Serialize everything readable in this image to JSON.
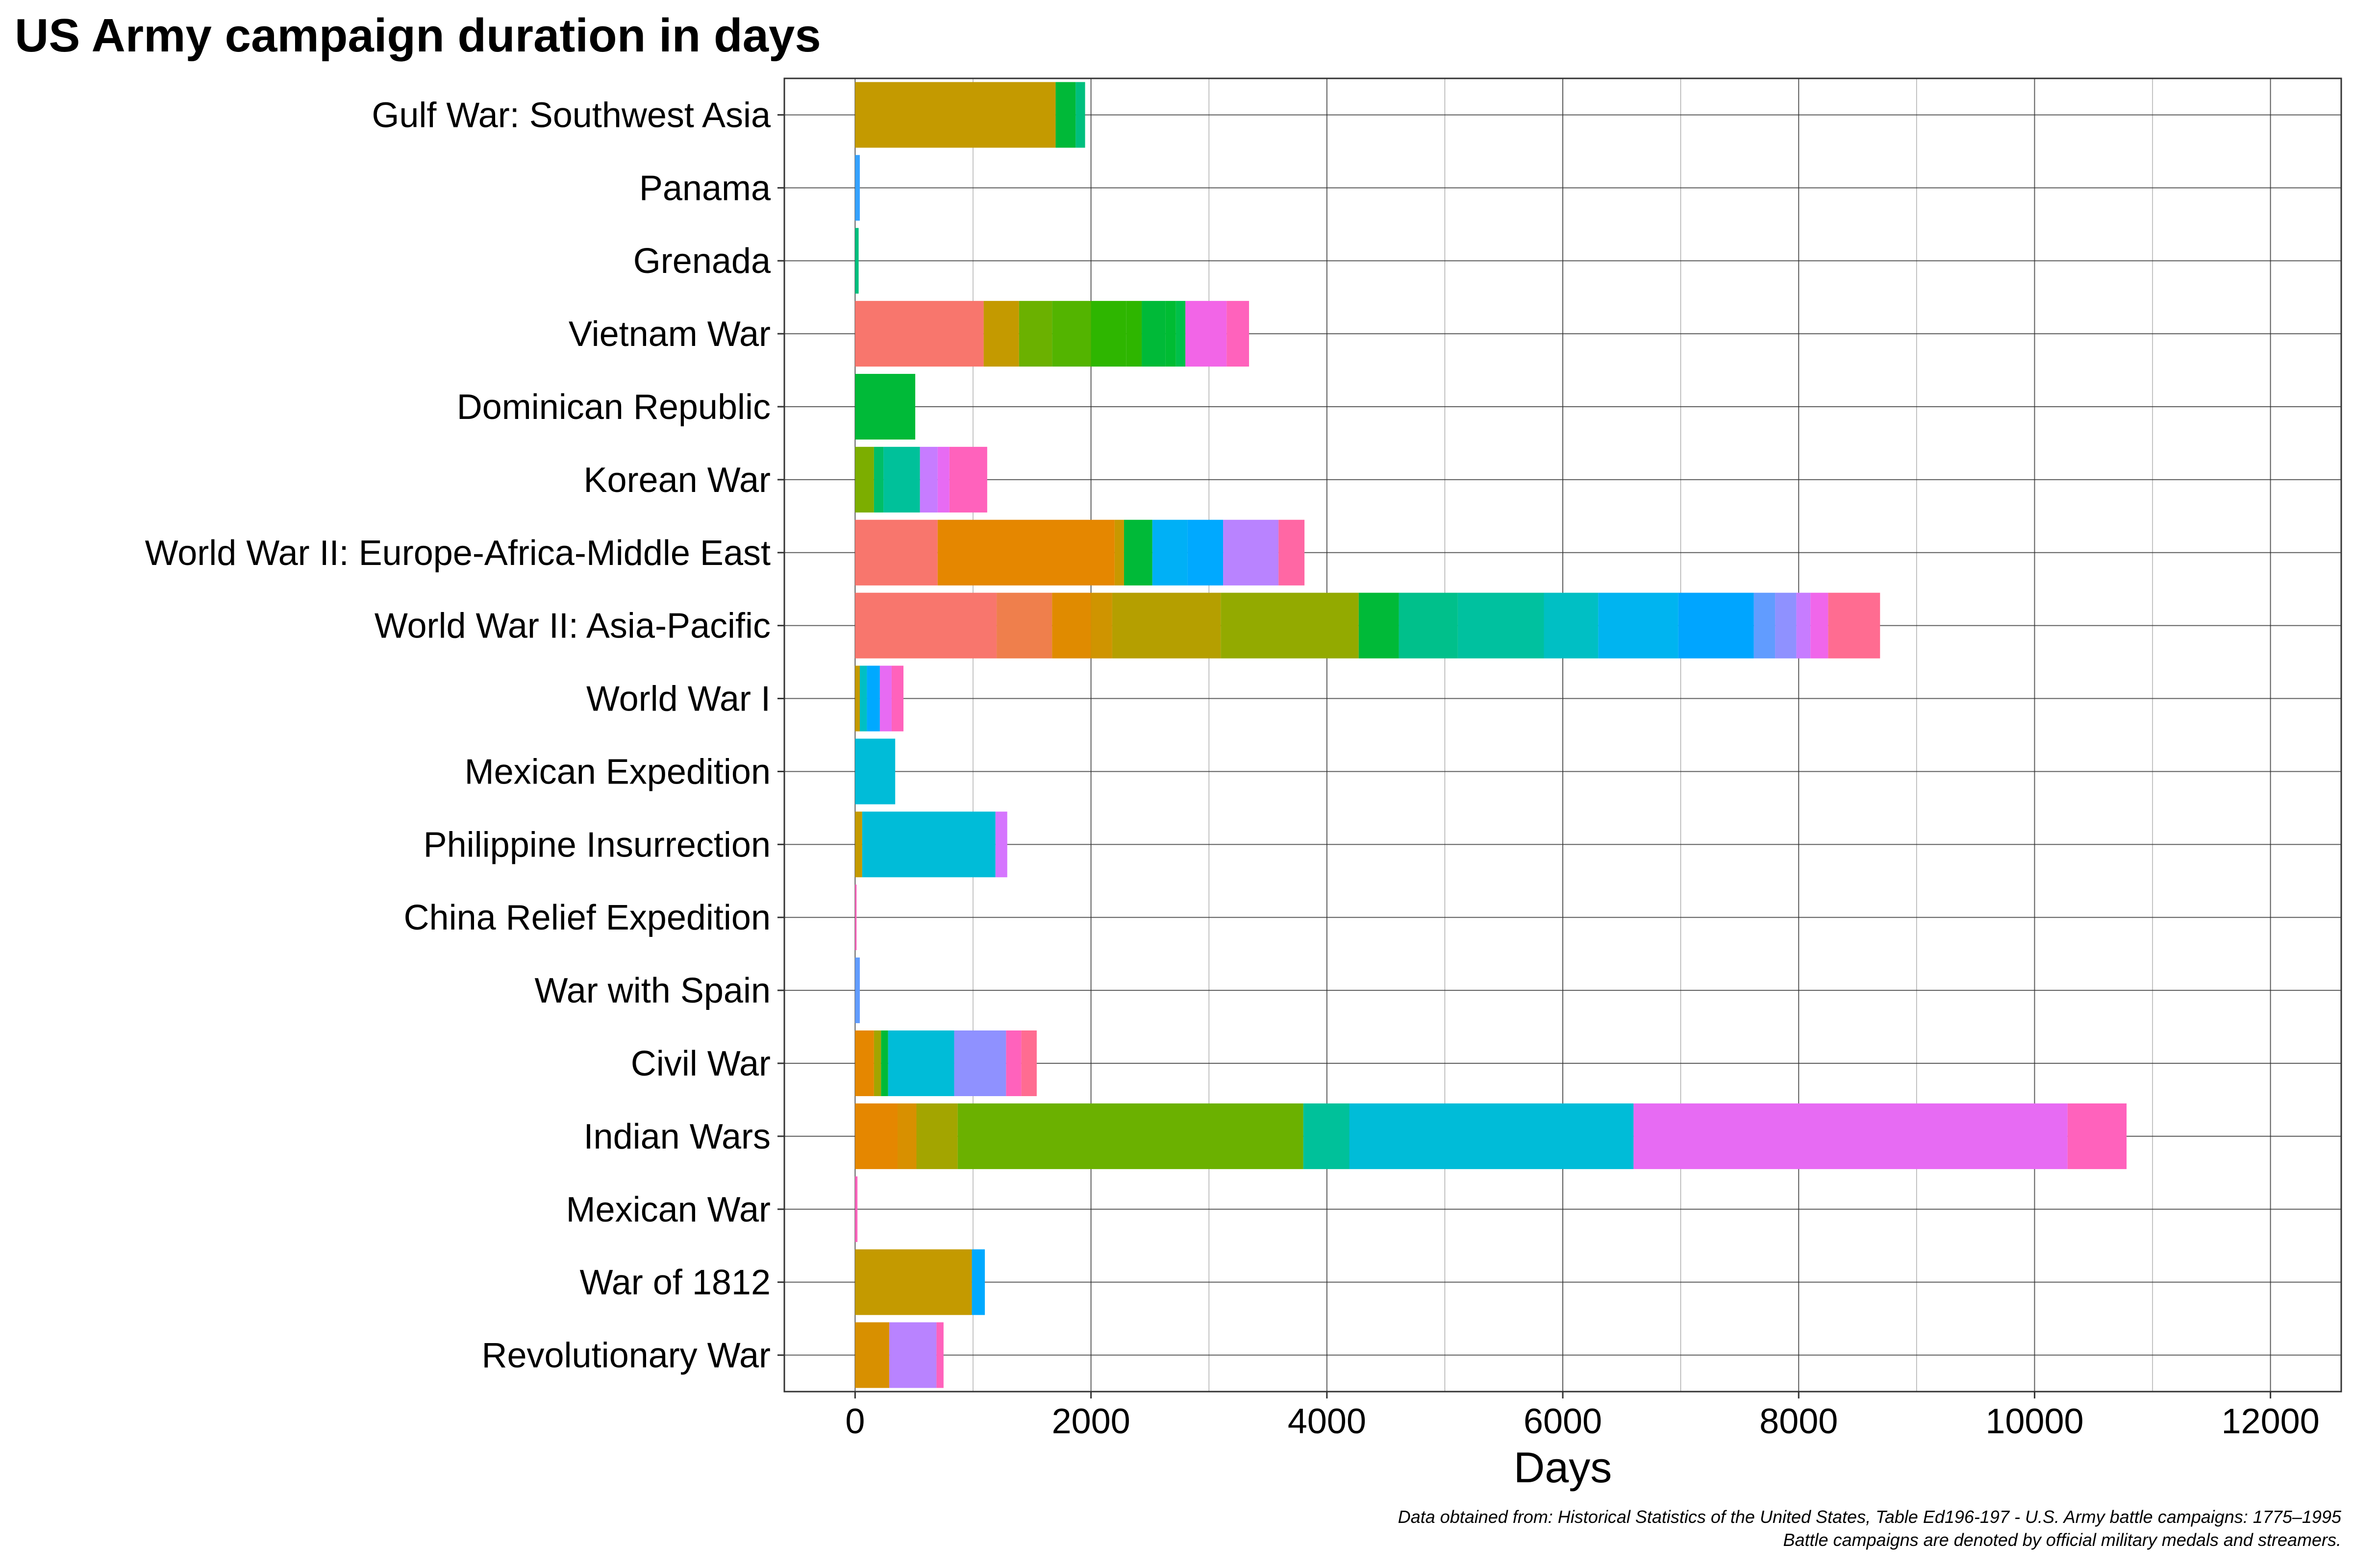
{
  "chart_data": {
    "type": "bar",
    "orientation": "horizontal",
    "stacked": true,
    "title": "US Army campaign duration in days",
    "xlabel": "Days",
    "ylabel": "",
    "xlim": [
      -600,
      12600
    ],
    "x_ticks": [
      0,
      2000,
      4000,
      6000,
      8000,
      10000,
      12000
    ],
    "x_tick_labels": [
      "0",
      "2000",
      "4000",
      "6000",
      "8000",
      "10000",
      "12000"
    ],
    "grid": true,
    "legend": "none",
    "caption_line1": "Data obtained from: Historical Statistics of the United States, Table Ed196-197 - U.S. Army battle campaigns: 1775–1995",
    "caption_line2": "Battle campaigns are denoted by official military medals and streamers.",
    "categories": [
      "Gulf War: Southwest Asia",
      "Panama",
      "Grenada",
      "Vietnam War",
      "Dominican Republic",
      "Korean War",
      "World War II: Europe-Africa-Middle East",
      "World War II: Asia-Pacific",
      "World War I",
      "Mexican Expedition",
      "Philippine Insurrection",
      "China Relief Expedition",
      "War with Spain",
      "Civil War",
      "Indian Wars",
      "Mexican War",
      "War of 1812",
      "Revolutionary War"
    ],
    "segments": [
      [
        {
          "value": 1700,
          "color": "#c49a00"
        },
        {
          "value": 170,
          "color": "#00b938"
        },
        {
          "value": 80,
          "color": "#00bf7d"
        }
      ],
      [
        {
          "value": 40,
          "color": "#35a2ff"
        }
      ],
      [
        {
          "value": 30,
          "color": "#00bf7d"
        }
      ],
      [
        {
          "value": 1090,
          "color": "#f8766d"
        },
        {
          "value": 300,
          "color": "#c49a00"
        },
        {
          "value": 280,
          "color": "#6bb100"
        },
        {
          "value": 330,
          "color": "#53b400"
        },
        {
          "value": 300,
          "color": "#2eb600"
        },
        {
          "value": 130,
          "color": "#2eb600"
        },
        {
          "value": 200,
          "color": "#00ba38"
        },
        {
          "value": 90,
          "color": "#00bc33"
        },
        {
          "value": 80,
          "color": "#00c04a"
        },
        {
          "value": 350,
          "color": "#f265e7"
        },
        {
          "value": 190,
          "color": "#ff62bc"
        }
      ],
      [
        {
          "value": 510,
          "color": "#00ba38"
        }
      ],
      [
        {
          "value": 160,
          "color": "#7cae00"
        },
        {
          "value": 80,
          "color": "#00be67"
        },
        {
          "value": 310,
          "color": "#00c19a"
        },
        {
          "value": 150,
          "color": "#c77cff"
        },
        {
          "value": 100,
          "color": "#e76bf3"
        },
        {
          "value": 320,
          "color": "#ff62bc"
        }
      ],
      [
        {
          "value": 700,
          "color": "#f8766d"
        },
        {
          "value": 1500,
          "color": "#e58700"
        },
        {
          "value": 80,
          "color": "#c99800"
        },
        {
          "value": 240,
          "color": "#00ba38"
        },
        {
          "value": 300,
          "color": "#00b0f6"
        },
        {
          "value": 300,
          "color": "#00a9ff"
        },
        {
          "value": 470,
          "color": "#b983ff"
        },
        {
          "value": 220,
          "color": "#ff67a4"
        }
      ],
      [
        {
          "value": 1200,
          "color": "#f8766d"
        },
        {
          "value": 470,
          "color": "#ef7f4c"
        },
        {
          "value": 330,
          "color": "#e08b00"
        },
        {
          "value": 180,
          "color": "#cf9400"
        },
        {
          "value": 920,
          "color": "#b59f00"
        },
        {
          "value": 1170,
          "color": "#93aa00"
        },
        {
          "value": 340,
          "color": "#00ba38"
        },
        {
          "value": 500,
          "color": "#00c08b"
        },
        {
          "value": 730,
          "color": "#00c19f"
        },
        {
          "value": 460,
          "color": "#00bfc4"
        },
        {
          "value": 680,
          "color": "#00b4f0"
        },
        {
          "value": 640,
          "color": "#00a5ff"
        },
        {
          "value": 180,
          "color": "#619cff"
        },
        {
          "value": 180,
          "color": "#8f91ff"
        },
        {
          "value": 120,
          "color": "#c77cff"
        },
        {
          "value": 150,
          "color": "#f066ea"
        },
        {
          "value": 440,
          "color": "#ff6c91"
        }
      ],
      [
        {
          "value": 40,
          "color": "#c49a00"
        },
        {
          "value": 60,
          "color": "#00bfc4"
        },
        {
          "value": 110,
          "color": "#00a9ff"
        },
        {
          "value": 100,
          "color": "#e76bf3"
        },
        {
          "value": 100,
          "color": "#ff62bc"
        }
      ],
      [
        {
          "value": 340,
          "color": "#00bcd8"
        }
      ],
      [
        {
          "value": 60,
          "color": "#c49a00"
        },
        {
          "value": 1130,
          "color": "#00bcd8"
        },
        {
          "value": 100,
          "color": "#d575fe"
        }
      ],
      [
        {
          "value": 8,
          "color": "#ff62bc"
        }
      ],
      [
        {
          "value": 40,
          "color": "#619cff"
        }
      ],
      [
        {
          "value": 160,
          "color": "#e58700"
        },
        {
          "value": 60,
          "color": "#a3a500"
        },
        {
          "value": 60,
          "color": "#00ba38"
        },
        {
          "value": 560,
          "color": "#00bcd8"
        },
        {
          "value": 440,
          "color": "#8f91ff"
        },
        {
          "value": 130,
          "color": "#ff62bc"
        },
        {
          "value": 130,
          "color": "#ff6c91"
        }
      ],
      [
        {
          "value": 360,
          "color": "#e58700"
        },
        {
          "value": 160,
          "color": "#d89000"
        },
        {
          "value": 350,
          "color": "#a3a500"
        },
        {
          "value": 2930,
          "color": "#6bb100"
        },
        {
          "value": 390,
          "color": "#00c19a"
        },
        {
          "value": 2410,
          "color": "#00bcd8"
        },
        {
          "value": 3680,
          "color": "#e76bf3"
        },
        {
          "value": 500,
          "color": "#ff62bc"
        }
      ],
      [
        {
          "value": 20,
          "color": "#ff62bc"
        }
      ],
      [
        {
          "value": 990,
          "color": "#c49a00"
        },
        {
          "value": 110,
          "color": "#00a9ff"
        }
      ],
      [
        {
          "value": 290,
          "color": "#d89000"
        },
        {
          "value": 400,
          "color": "#b983ff"
        },
        {
          "value": 60,
          "color": "#ff62bc"
        }
      ]
    ]
  }
}
